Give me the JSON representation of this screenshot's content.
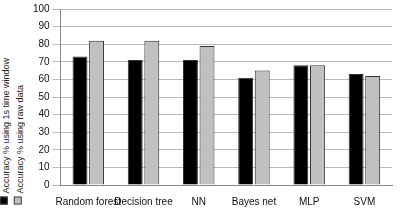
{
  "chart_data": {
    "type": "bar",
    "categories": [
      "Random forest",
      "Decision tree",
      "NN",
      "Bayes net",
      "MLP",
      "SVM"
    ],
    "series": [
      {
        "name": "Accuracy % using 1s time window",
        "color": "#000000",
        "values": [
          73,
          71,
          71,
          61,
          68,
          63
        ]
      },
      {
        "name": "Accuracy % using raw data",
        "color": "#c0c0c0",
        "values": [
          82,
          82,
          79,
          65,
          68,
          62
        ]
      }
    ],
    "ylim": [
      0,
      100
    ],
    "yticks": [
      0,
      10,
      20,
      30,
      40,
      50,
      60,
      70,
      80,
      90,
      100
    ],
    "grid": true,
    "legend": "left"
  }
}
